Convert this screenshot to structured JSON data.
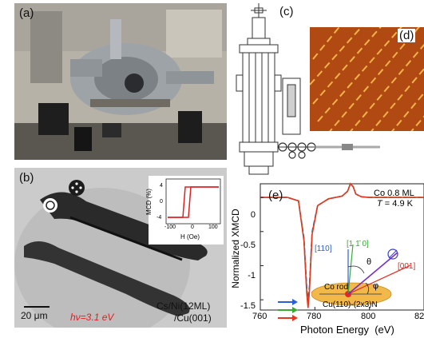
{
  "panels": {
    "a": {
      "label": "(a)"
    },
    "b": {
      "label": "(b)",
      "scalebar": "20 μm",
      "photon_energy": "hν=3.1 eV",
      "sample_line1": "Cs/Ni(12ML)",
      "sample_line2": "/Cu(001)",
      "inset": {
        "ylabel": "MCD (%)",
        "xlabel": "H (Oe)",
        "yticks": [
          "4",
          "0",
          "-4"
        ],
        "xticks": [
          "-100",
          "0",
          "100"
        ]
      }
    },
    "c": {
      "label": "(c)"
    },
    "d": {
      "label": "(d)"
    },
    "e": {
      "label": "(e)",
      "annotation_line1": "Co 0.8 ML",
      "annotation_t_var": "T",
      "annotation_t_val": " = 4.9 K",
      "vectors": {
        "v110": "[110]",
        "v1m10": "[1 1̄ 0]",
        "v001": "[001]",
        "theta": "θ",
        "phi": "φ",
        "co_rod": "Co rod",
        "substrate": "Cu(110)-(2x3)N"
      },
      "arrow_colors": [
        "#2b5fd6",
        "#39a934",
        "#e23a1f"
      ]
    }
  },
  "chart_data": {
    "type": "line",
    "xlabel": "Photon Energy  (eV)",
    "ylabel": "Normalized XMCD",
    "xlim": [
      760,
      820
    ],
    "ylim": [
      -1.65,
      0.2
    ],
    "xticks": [
      "760",
      "780",
      "800",
      "82"
    ],
    "yticks": [
      "0",
      "-0.5",
      "-1",
      "-1.5"
    ],
    "series": [
      {
        "color": "#2b5fd6",
        "x": [
          760,
          770,
          774,
          776,
          777,
          777.5,
          778,
          779,
          781,
          785,
          790,
          792,
          793,
          794,
          795,
          797,
          800,
          810,
          820
        ],
        "y": [
          0,
          0,
          -0.05,
          -0.6,
          -1.3,
          -1.52,
          -1.3,
          -0.5,
          -0.12,
          -0.02,
          0.02,
          0.09,
          0.2,
          0.16,
          0.05,
          0.01,
          0,
          0,
          0
        ]
      },
      {
        "color": "#39a934",
        "x": [
          760,
          770,
          774,
          776,
          777,
          777.5,
          778,
          779,
          781,
          785,
          790,
          792,
          793,
          794,
          795,
          797,
          800,
          810,
          820
        ],
        "y": [
          0,
          0,
          -0.05,
          -0.62,
          -1.35,
          -1.57,
          -1.34,
          -0.52,
          -0.12,
          -0.02,
          0.02,
          0.09,
          0.2,
          0.16,
          0.05,
          0.01,
          0,
          0,
          0
        ]
      },
      {
        "color": "#e23a1f",
        "x": [
          760,
          770,
          774,
          776,
          777,
          777.5,
          778,
          779,
          781,
          785,
          790,
          792,
          793,
          794,
          795,
          797,
          800,
          810,
          820
        ],
        "y": [
          0,
          0,
          -0.05,
          -0.64,
          -1.4,
          -1.62,
          -1.38,
          -0.54,
          -0.12,
          -0.02,
          0.02,
          0.09,
          0.2,
          0.16,
          0.05,
          0.01,
          0,
          0,
          0
        ]
      }
    ]
  }
}
